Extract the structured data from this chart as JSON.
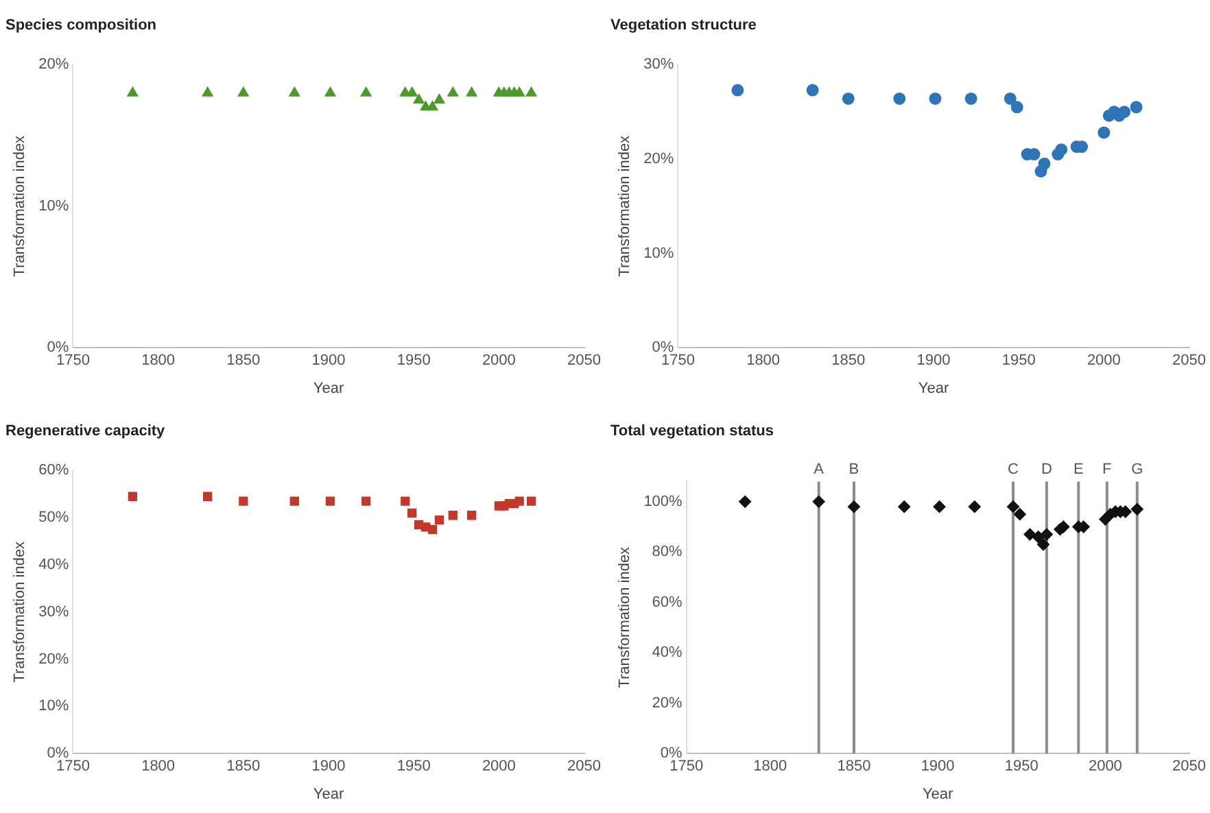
{
  "chart_data": [
    {
      "type": "scatter",
      "title": "Species composition",
      "xlabel": "Year",
      "ylabel": "Transformation index",
      "marker": "triangle",
      "grid": false,
      "x": [
        1785,
        1829,
        1850,
        1880,
        1901,
        1922,
        1945,
        1949,
        1953,
        1957,
        1961,
        1965,
        1973,
        1984,
        2000,
        2003,
        2006,
        2009,
        2012,
        2019
      ],
      "series": [
        {
          "color": "#4f9a2f",
          "values": [
            18,
            18,
            18,
            18,
            18,
            18,
            18,
            18,
            17.5,
            17,
            17,
            17.5,
            18,
            18,
            18,
            18,
            18,
            18,
            18,
            18
          ]
        }
      ],
      "xlim": [
        1750,
        2050
      ],
      "xticks": [
        1750,
        1800,
        1850,
        1900,
        1950,
        2000,
        2050
      ],
      "ylim": [
        0,
        20
      ],
      "yticks": [
        {
          "value": 0,
          "label": "0%"
        },
        {
          "value": 10,
          "label": "10%"
        },
        {
          "value": 20,
          "label": "20%"
        }
      ]
    },
    {
      "type": "scatter",
      "title": "Vegetation structure",
      "xlabel": "Year",
      "ylabel": "Transformation index",
      "marker": "circle",
      "grid": false,
      "x": [
        1785,
        1829,
        1850,
        1880,
        1901,
        1922,
        1945,
        1949,
        1955,
        1959,
        1963,
        1965,
        1973,
        1975,
        1984,
        1987,
        2000,
        2003,
        2006,
        2009,
        2012,
        2019
      ],
      "series": [
        {
          "color": "#2e75b6",
          "values": [
            27.3,
            27.3,
            26.4,
            26.4,
            26.4,
            26.4,
            26.4,
            25.5,
            20.5,
            20.5,
            18.7,
            19.5,
            20.5,
            21,
            21.3,
            21.3,
            22.8,
            24.6,
            25,
            24.6,
            25,
            25.5
          ]
        }
      ],
      "xlim": [
        1750,
        2050
      ],
      "xticks": [
        1750,
        1800,
        1850,
        1900,
        1950,
        2000,
        2050
      ],
      "ylim": [
        0,
        30
      ],
      "yticks": [
        {
          "value": 0,
          "label": "0%"
        },
        {
          "value": 10,
          "label": "10%"
        },
        {
          "value": 20,
          "label": "20%"
        },
        {
          "value": 30,
          "label": "30%"
        }
      ]
    },
    {
      "type": "scatter",
      "title": "Regenerative capacity",
      "xlabel": "Year",
      "ylabel": "Transformation index",
      "marker": "square",
      "grid": false,
      "x": [
        1785,
        1829,
        1850,
        1880,
        1901,
        1922,
        1945,
        1949,
        1953,
        1957,
        1961,
        1965,
        1973,
        1984,
        2000,
        2003,
        2006,
        2009,
        2012,
        2019
      ],
      "series": [
        {
          "color": "#c0392b",
          "values": [
            54.5,
            54.5,
            53.5,
            53.5,
            53.5,
            53.5,
            53.5,
            51,
            48.5,
            48,
            47.5,
            49.5,
            50.5,
            50.5,
            52.5,
            52.5,
            53,
            53,
            53.5,
            53.5
          ]
        }
      ],
      "xlim": [
        1750,
        2050
      ],
      "xticks": [
        1750,
        1800,
        1850,
        1900,
        1950,
        2000,
        2050
      ],
      "ylim": [
        0,
        60
      ],
      "yticks": [
        {
          "value": 0,
          "label": "0%"
        },
        {
          "value": 10,
          "label": "10%"
        },
        {
          "value": 20,
          "label": "20%"
        },
        {
          "value": 30,
          "label": "30%"
        },
        {
          "value": 40,
          "label": "40%"
        },
        {
          "value": 50,
          "label": "50%"
        },
        {
          "value": 60,
          "label": "60%"
        }
      ]
    },
    {
      "type": "scatter",
      "title": "Total vegetation status",
      "xlabel": "Year",
      "ylabel": "Transformation index",
      "marker": "diamond",
      "grid": false,
      "x": [
        1785,
        1829,
        1850,
        1880,
        1901,
        1922,
        1945,
        1949,
        1955,
        1960,
        1963,
        1965,
        1973,
        1975,
        1984,
        1987,
        2000,
        2003,
        2006,
        2009,
        2012,
        2019
      ],
      "series": [
        {
          "color": "#111111",
          "values": [
            100,
            100,
            98,
            98,
            98,
            98,
            98,
            95,
            87,
            86,
            83,
            87,
            89,
            90,
            90,
            90,
            93,
            95,
            96,
            96,
            96,
            97
          ]
        }
      ],
      "xlim": [
        1750,
        2050
      ],
      "xticks": [
        1750,
        1800,
        1850,
        1900,
        1950,
        2000,
        2050
      ],
      "ylim": [
        0,
        108
      ],
      "yticks": [
        {
          "value": 0,
          "label": "0%"
        },
        {
          "value": 20,
          "label": "20%"
        },
        {
          "value": 40,
          "label": "40%"
        },
        {
          "value": 60,
          "label": "60%"
        },
        {
          "value": 80,
          "label": "80%"
        },
        {
          "value": 100,
          "label": "100%"
        }
      ],
      "ref_lines": [
        {
          "axis": "x",
          "value": 1829,
          "label": "A",
          "color": "#8c8c8c"
        },
        {
          "axis": "x",
          "value": 1850,
          "label": "B",
          "color": "#8c8c8c"
        },
        {
          "axis": "x",
          "value": 1945,
          "label": "C",
          "color": "#8c8c8c"
        },
        {
          "axis": "x",
          "value": 1965,
          "label": "D",
          "color": "#8c8c8c"
        },
        {
          "axis": "x",
          "value": 1984,
          "label": "E",
          "color": "#8c8c8c"
        },
        {
          "axis": "x",
          "value": 2001,
          "label": "F",
          "color": "#8c8c8c"
        },
        {
          "axis": "x",
          "value": 2019,
          "label": "G",
          "color": "#8c8c8c"
        }
      ]
    }
  ]
}
